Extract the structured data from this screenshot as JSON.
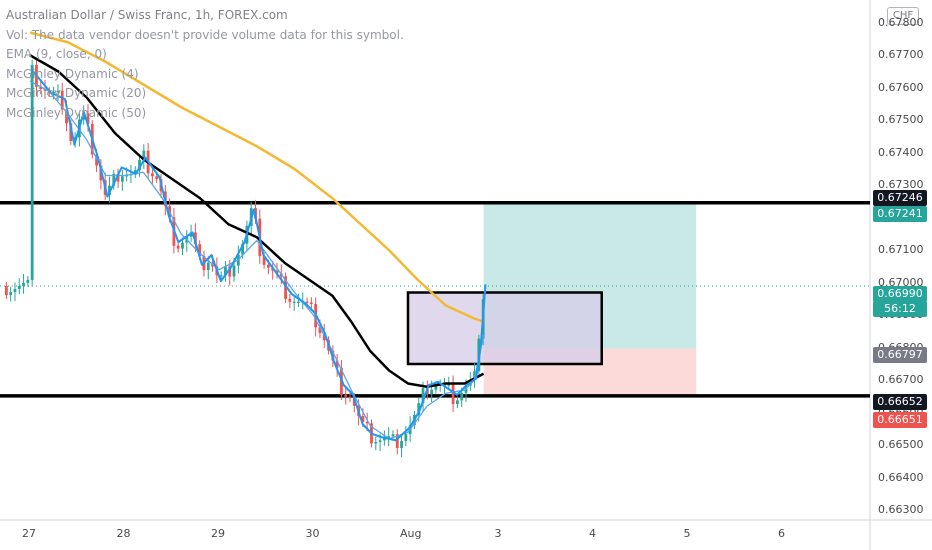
{
  "legend": {
    "title": "Australian Dollar / Swiss Franc, 1h, FOREX.com",
    "lines": [
      "Vol: The data vendor doesn't provide volume data for this symbol.",
      "EMA (9, close, 0)",
      "McGinley Dynamic (4)",
      "McGinley Dynamic (20)",
      "McGinley Dynamic (50)"
    ]
  },
  "currency": "CHF",
  "price_tags": {
    "resistance": "0.67246",
    "target": "0.67241",
    "last": "0.66990",
    "countdown": "56:12",
    "entry": "0.66797",
    "support": "0.66652",
    "stop": "0.66651"
  },
  "colors": {
    "up": "#26a69a",
    "down": "#ef5350",
    "ema": "#5aa6e8",
    "mcginley_4": "#2196f3",
    "mcginley_20": "#000000",
    "mcginley_50": "#f5b833",
    "target_zone": "#b2dfdb",
    "stop_zone": "#fcd3d3",
    "box_fill": "#d6cce8",
    "tag_dark": "#131722",
    "tag_green": "#26a69a",
    "tag_grey": "#787b86",
    "tag_red": "#ef5350"
  },
  "chart_data": {
    "type": "candlestick",
    "ylim": [
      0.6627,
      0.6787
    ],
    "y_ticks": [
      "0.67800",
      "0.67700",
      "0.67600",
      "0.67500",
      "0.67400",
      "0.67300",
      "0.67200",
      "0.67100",
      "0.67000",
      "0.66900",
      "0.66800",
      "0.66700",
      "0.66600",
      "0.66500",
      "0.66400",
      "0.66300"
    ],
    "x_ticks": [
      "27",
      "28",
      "29",
      "30",
      "Aug",
      "3",
      "4",
      "5",
      "6"
    ],
    "close_path": [
      [
        27.0,
        0.6765
      ],
      [
        27.2,
        0.6758
      ],
      [
        27.35,
        0.6756
      ],
      [
        27.45,
        0.6742
      ],
      [
        27.55,
        0.6752
      ],
      [
        27.7,
        0.6738
      ],
      [
        27.8,
        0.6726
      ],
      [
        27.95,
        0.6735
      ],
      [
        28.1,
        0.6733
      ],
      [
        28.2,
        0.6738
      ],
      [
        28.35,
        0.6732
      ],
      [
        28.45,
        0.672
      ],
      [
        28.55,
        0.6712
      ],
      [
        28.7,
        0.6715
      ],
      [
        28.8,
        0.6705
      ],
      [
        28.9,
        0.6708
      ],
      [
        29.0,
        0.67
      ],
      [
        29.1,
        0.6704
      ],
      [
        29.25,
        0.6712
      ],
      [
        29.35,
        0.6722
      ],
      [
        29.45,
        0.6708
      ],
      [
        29.6,
        0.6702
      ],
      [
        29.75,
        0.6696
      ],
      [
        29.9,
        0.6693
      ],
      [
        30.0,
        0.669
      ],
      [
        30.1,
        0.6684
      ],
      [
        30.2,
        0.6675
      ],
      [
        30.3,
        0.6668
      ],
      [
        30.4,
        0.6665
      ],
      [
        30.5,
        0.6656
      ],
      [
        30.6,
        0.6653
      ],
      [
        30.7,
        0.6652
      ],
      [
        30.85,
        0.6651
      ],
      [
        31.0,
        0.6655
      ],
      [
        31.1,
        0.666
      ],
      [
        31.2,
        0.6668
      ],
      [
        31.3,
        0.6669
      ],
      [
        31.4,
        0.6667
      ],
      [
        31.5,
        0.6665
      ],
      [
        31.6,
        0.6668
      ],
      [
        31.7,
        0.667
      ],
      [
        31.75,
        0.668
      ],
      [
        31.8,
        0.6699
      ]
    ],
    "ema_9": [
      [
        27.0,
        0.6762
      ],
      [
        27.2,
        0.6759
      ],
      [
        27.4,
        0.6752
      ],
      [
        27.6,
        0.6744
      ],
      [
        27.8,
        0.6733
      ],
      [
        28.0,
        0.6733
      ],
      [
        28.2,
        0.6734
      ],
      [
        28.4,
        0.6726
      ],
      [
        28.6,
        0.6715
      ],
      [
        28.8,
        0.6709
      ],
      [
        29.0,
        0.6704
      ],
      [
        29.2,
        0.6707
      ],
      [
        29.4,
        0.6713
      ],
      [
        29.6,
        0.6705
      ],
      [
        29.8,
        0.6697
      ],
      [
        30.0,
        0.669
      ],
      [
        30.2,
        0.6679
      ],
      [
        30.4,
        0.6667
      ],
      [
        30.6,
        0.6656
      ],
      [
        30.8,
        0.6652
      ],
      [
        31.0,
        0.6654
      ],
      [
        31.2,
        0.6662
      ],
      [
        31.4,
        0.6666
      ],
      [
        31.6,
        0.6667
      ],
      [
        31.7,
        0.667
      ],
      [
        31.8,
        0.6684
      ]
    ],
    "mcginley_20": [
      [
        27.0,
        0.677
      ],
      [
        27.3,
        0.6765
      ],
      [
        27.6,
        0.6757
      ],
      [
        27.9,
        0.6746
      ],
      [
        28.2,
        0.6738
      ],
      [
        28.5,
        0.6732
      ],
      [
        28.8,
        0.6726
      ],
      [
        29.1,
        0.6718
      ],
      [
        29.4,
        0.6714
      ],
      [
        29.7,
        0.6706
      ],
      [
        30.0,
        0.67
      ],
      [
        30.2,
        0.6696
      ],
      [
        30.4,
        0.6688
      ],
      [
        30.6,
        0.6679
      ],
      [
        30.8,
        0.6673
      ],
      [
        31.0,
        0.6669
      ],
      [
        31.2,
        0.6668
      ],
      [
        31.4,
        0.6669
      ],
      [
        31.6,
        0.6669
      ],
      [
        31.8,
        0.6672
      ]
    ],
    "mcginley_50": [
      [
        27.0,
        0.6777
      ],
      [
        27.4,
        0.6774
      ],
      [
        27.8,
        0.6768
      ],
      [
        28.2,
        0.6761
      ],
      [
        28.6,
        0.6754
      ],
      [
        29.0,
        0.6748
      ],
      [
        29.4,
        0.6742
      ],
      [
        29.8,
        0.6735
      ],
      [
        30.2,
        0.6726
      ],
      [
        30.5,
        0.6718
      ],
      [
        30.8,
        0.671
      ],
      [
        31.1,
        0.6701
      ],
      [
        31.4,
        0.6693
      ],
      [
        31.7,
        0.6689
      ],
      [
        31.8,
        0.6688
      ]
    ],
    "levels": {
      "resistance": 0.67246,
      "support": 0.66652,
      "entry": 0.66797,
      "target": 0.67241,
      "stop": 0.66651,
      "last": 0.6699
    },
    "position": {
      "x_start": 31.8,
      "x_end": 34.05
    },
    "box": {
      "x_start": 31.0,
      "x_end": 33.05,
      "y_top": 0.6697,
      "y_bottom": 0.6675
    }
  }
}
